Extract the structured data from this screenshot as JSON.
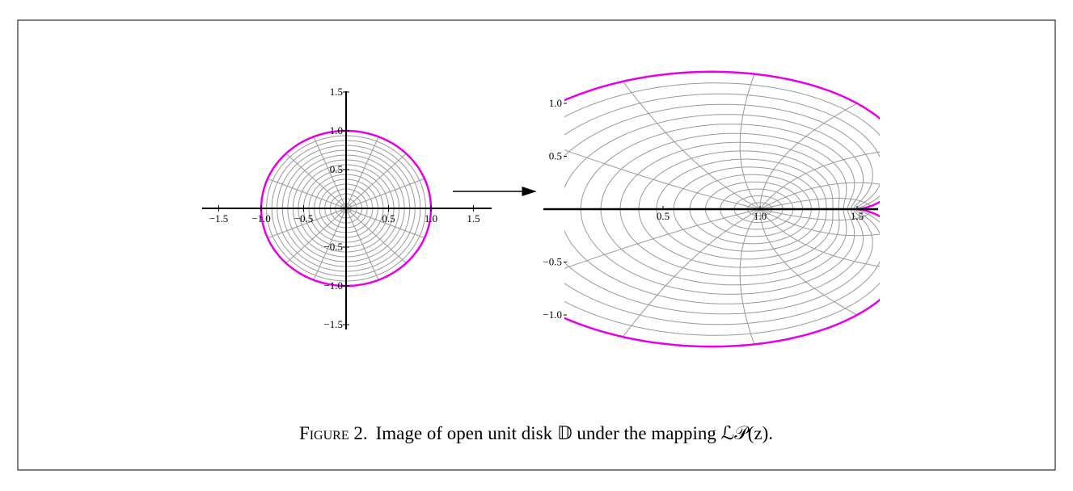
{
  "figure": {
    "left_plot": {
      "xticks": [
        {
          "value": -1.5,
          "label": "−1.5"
        },
        {
          "value": -1,
          "label": "−1.0"
        },
        {
          "value": -0.5,
          "label": "−0.5"
        },
        0.5,
        {
          "value": 1,
          "label": "1.0"
        },
        1.5
      ],
      "yticks": [
        1.5,
        {
          "value": 1,
          "label": "1.0"
        },
        0.5,
        {
          "value": -0.5,
          "label": "−0.5"
        },
        {
          "value": -1,
          "label": "−1.0"
        },
        {
          "value": -1.5,
          "label": "−1.5"
        }
      ]
    },
    "right_plot": {
      "xticks": [
        0.5,
        {
          "value": 1,
          "label": "1.0"
        },
        1.5
      ],
      "yticks": [
        {
          "value": 1,
          "label": "1.0"
        },
        0.5,
        {
          "value": -0.5,
          "label": "−0.5"
        },
        {
          "value": -1,
          "label": "−1.0"
        }
      ]
    },
    "caption": {
      "label": "Figure 2.",
      "text": "Image of open unit disk 𝔻 under the mapping ℒ𝒫(z)."
    }
  }
}
